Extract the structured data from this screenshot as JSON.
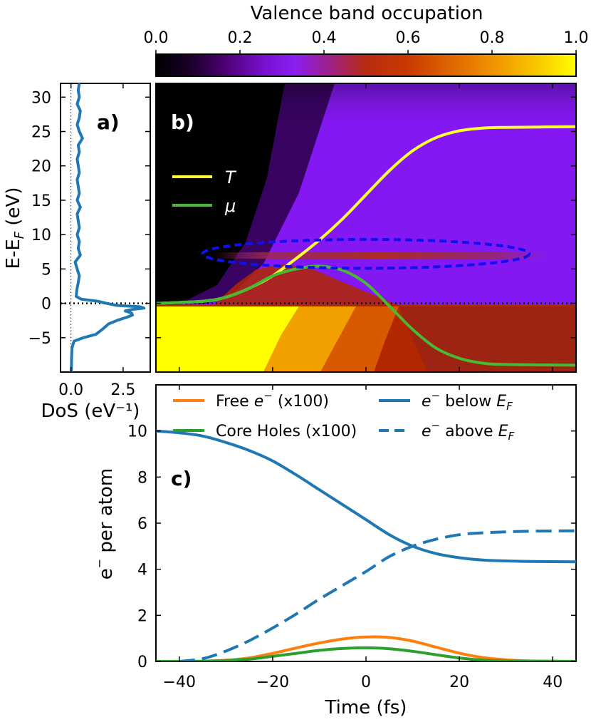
{
  "chart_data": [
    {
      "id": "colorbar",
      "type": "colorbar",
      "title": "Valence band occupation",
      "range": [
        0,
        1
      ],
      "ticks": [
        "0.0",
        "0.2",
        "0.4",
        "0.6",
        "0.8",
        "1.0"
      ],
      "tick_values": [
        0,
        0.2,
        0.4,
        0.6,
        0.8,
        1.0
      ]
    },
    {
      "id": "panel-a",
      "type": "line",
      "label": "a)",
      "xlabel": "DoS (eV⁻¹)",
      "ylabel": "E-E_F (eV)",
      "xlim": [
        -0.5,
        3.8
      ],
      "ylim": [
        -10,
        32
      ],
      "xticks": [
        "0.0",
        "2.5"
      ],
      "xtick_values": [
        0,
        2.5
      ],
      "yticks": [
        "−5",
        "0",
        "5",
        "10",
        "15",
        "20",
        "25",
        "30"
      ],
      "ytick_values": [
        -5,
        0,
        5,
        10,
        15,
        20,
        25,
        30
      ],
      "color": "#1f77b4",
      "series": [
        {
          "name": "DoS",
          "points": [
            [
              0.02,
              -10
            ],
            [
              0.03,
              -8
            ],
            [
              0.05,
              -6.5
            ],
            [
              0.15,
              -5.5
            ],
            [
              0.6,
              -5
            ],
            [
              1.2,
              -4.5
            ],
            [
              1.5,
              -3.8
            ],
            [
              1.8,
              -3
            ],
            [
              2.2,
              -2.5
            ],
            [
              2.7,
              -2
            ],
            [
              2.95,
              -1.7
            ],
            [
              2.9,
              -1.4
            ],
            [
              2.6,
              -1.1
            ],
            [
              2.9,
              -0.9
            ],
            [
              3.5,
              -0.7
            ],
            [
              3.3,
              -0.5
            ],
            [
              2.2,
              -0.3
            ],
            [
              1.7,
              0
            ],
            [
              1.3,
              0.3
            ],
            [
              0.5,
              0.6
            ],
            [
              0.25,
              1
            ],
            [
              0.28,
              2
            ],
            [
              0.35,
              3
            ],
            [
              0.4,
              4
            ],
            [
              0.3,
              5
            ],
            [
              0.2,
              6
            ],
            [
              0.45,
              7
            ],
            [
              0.35,
              8
            ],
            [
              0.4,
              9
            ],
            [
              0.3,
              10
            ],
            [
              0.4,
              11
            ],
            [
              0.35,
              12
            ],
            [
              0.3,
              13
            ],
            [
              0.45,
              14
            ],
            [
              0.3,
              15
            ],
            [
              0.4,
              16
            ],
            [
              0.35,
              17
            ],
            [
              0.3,
              18
            ],
            [
              0.4,
              19
            ],
            [
              0.35,
              20
            ],
            [
              0.3,
              21
            ],
            [
              0.4,
              22
            ],
            [
              0.35,
              23
            ],
            [
              0.55,
              24
            ],
            [
              0.4,
              25
            ],
            [
              0.3,
              26
            ],
            [
              0.4,
              27
            ],
            [
              0.45,
              28
            ],
            [
              0.3,
              29
            ],
            [
              0.4,
              30
            ],
            [
              0.35,
              31
            ],
            [
              0.4,
              32
            ]
          ]
        }
      ],
      "reference_lines": [
        {
          "axis": "y",
          "value": 0,
          "style": "dotted"
        },
        {
          "axis": "x",
          "value": 0,
          "style": "dotted-thin"
        }
      ]
    },
    {
      "id": "panel-b",
      "type": "heatmap",
      "label": "b)",
      "xlim": [
        -45,
        45
      ],
      "ylim": [
        -10,
        32
      ],
      "colormap": "gnuplot-like (black to purple to red to orange to yellow)",
      "legend": [
        {
          "name": "T",
          "color": "#ffff33"
        },
        {
          "name": "μ",
          "color": "#44bb33"
        }
      ],
      "series": [
        {
          "name": "T",
          "color": "#ffff33",
          "points": [
            [
              -45,
              0
            ],
            [
              -35,
              0.3
            ],
            [
              -30,
              0.9
            ],
            [
              -25,
              2.2
            ],
            [
              -20,
              4.0
            ],
            [
              -15,
              6.5
            ],
            [
              -10,
              9.2
            ],
            [
              -5,
              12.3
            ],
            [
              0,
              15.8
            ],
            [
              5,
              19.3
            ],
            [
              10,
              22.2
            ],
            [
              15,
              24.1
            ],
            [
              20,
              25.1
            ],
            [
              25,
              25.5
            ],
            [
              30,
              25.6
            ],
            [
              45,
              25.7
            ]
          ]
        },
        {
          "name": "μ",
          "color": "#44bb33",
          "points": [
            [
              -45,
              0
            ],
            [
              -35,
              0.3
            ],
            [
              -30,
              0.9
            ],
            [
              -25,
              2.2
            ],
            [
              -20,
              4.0
            ],
            [
              -15,
              5.0
            ],
            [
              -10,
              5.4
            ],
            [
              -5,
              4.8
            ],
            [
              0,
              2.9
            ],
            [
              5,
              -0.4
            ],
            [
              10,
              -3.8
            ],
            [
              15,
              -6.5
            ],
            [
              20,
              -8.0
            ],
            [
              25,
              -8.7
            ],
            [
              30,
              -8.9
            ],
            [
              45,
              -9.0
            ]
          ]
        }
      ],
      "reference_lines": [
        {
          "axis": "y",
          "value": 0,
          "style": "dotted"
        }
      ],
      "annotations": [
        {
          "type": "ellipse",
          "center_time": 0,
          "center_energy": 7.2,
          "time_half_width": 35,
          "energy_half_height": 2.1,
          "style": "dashed",
          "color": "#1010ee"
        }
      ]
    },
    {
      "id": "panel-c",
      "type": "line",
      "label": "c)",
      "xlabel": "Time (fs)",
      "ylabel": "e⁻ per atom",
      "xlim": [
        -45,
        45
      ],
      "ylim": [
        0,
        12
      ],
      "xticks": [
        "−40",
        "−20",
        "0",
        "20",
        "40"
      ],
      "xtick_values": [
        -40,
        -20,
        0,
        20,
        40
      ],
      "yticks": [
        "0",
        "2",
        "4",
        "6",
        "8",
        "10"
      ],
      "ytick_values": [
        0,
        2,
        4,
        6,
        8,
        10
      ],
      "legend": [
        {
          "name": "Free e⁻ (x100)",
          "color": "#ff7f0e",
          "style": "solid"
        },
        {
          "name": "Core Holes (x100)",
          "color": "#2ca02c",
          "style": "solid"
        },
        {
          "name": "e⁻ below E_F",
          "color": "#1f77b4",
          "style": "solid"
        },
        {
          "name": "e⁻ above E_F",
          "color": "#1f77b4",
          "style": "dashed"
        }
      ],
      "series": [
        {
          "name": "Free e⁻ (x100)",
          "color": "#ff7f0e",
          "style": "solid",
          "points": [
            [
              -45,
              0
            ],
            [
              -40,
              0
            ],
            [
              -35,
              0.01
            ],
            [
              -30,
              0.05
            ],
            [
              -25,
              0.15
            ],
            [
              -20,
              0.35
            ],
            [
              -15,
              0.58
            ],
            [
              -10,
              0.8
            ],
            [
              -5,
              0.97
            ],
            [
              0,
              1.06
            ],
            [
              5,
              1.04
            ],
            [
              10,
              0.88
            ],
            [
              15,
              0.62
            ],
            [
              20,
              0.36
            ],
            [
              25,
              0.17
            ],
            [
              30,
              0.07
            ],
            [
              35,
              0.02
            ],
            [
              45,
              0
            ]
          ]
        },
        {
          "name": "Core Holes (x100)",
          "color": "#2ca02c",
          "style": "solid",
          "points": [
            [
              -45,
              0
            ],
            [
              -40,
              0
            ],
            [
              -35,
              0.01
            ],
            [
              -30,
              0.04
            ],
            [
              -25,
              0.1
            ],
            [
              -20,
              0.22
            ],
            [
              -15,
              0.35
            ],
            [
              -10,
              0.48
            ],
            [
              -5,
              0.56
            ],
            [
              0,
              0.59
            ],
            [
              5,
              0.55
            ],
            [
              10,
              0.44
            ],
            [
              15,
              0.29
            ],
            [
              20,
              0.15
            ],
            [
              25,
              0.06
            ],
            [
              30,
              0.02
            ],
            [
              45,
              0
            ]
          ]
        },
        {
          "name": "e⁻ below E_F",
          "color": "#1f77b4",
          "style": "solid",
          "points": [
            [
              -45,
              10.0
            ],
            [
              -40,
              9.92
            ],
            [
              -35,
              9.78
            ],
            [
              -30,
              9.5
            ],
            [
              -25,
              9.15
            ],
            [
              -20,
              8.7
            ],
            [
              -15,
              8.1
            ],
            [
              -10,
              7.45
            ],
            [
              -5,
              6.8
            ],
            [
              0,
              6.15
            ],
            [
              5,
              5.5
            ],
            [
              10,
              5.0
            ],
            [
              15,
              4.68
            ],
            [
              20,
              4.5
            ],
            [
              25,
              4.4
            ],
            [
              30,
              4.36
            ],
            [
              35,
              4.34
            ],
            [
              45,
              4.32
            ]
          ]
        },
        {
          "name": "e⁻ above E_F",
          "color": "#1f77b4",
          "style": "dashed",
          "points": [
            [
              -40,
              0
            ],
            [
              -35,
              0.12
            ],
            [
              -30,
              0.45
            ],
            [
              -25,
              0.9
            ],
            [
              -20,
              1.45
            ],
            [
              -15,
              2.05
            ],
            [
              -10,
              2.7
            ],
            [
              -5,
              3.3
            ],
            [
              0,
              3.9
            ],
            [
              5,
              4.55
            ],
            [
              10,
              5.0
            ],
            [
              15,
              5.3
            ],
            [
              20,
              5.5
            ],
            [
              25,
              5.58
            ],
            [
              30,
              5.62
            ],
            [
              35,
              5.65
            ],
            [
              45,
              5.67
            ]
          ]
        }
      ]
    }
  ]
}
